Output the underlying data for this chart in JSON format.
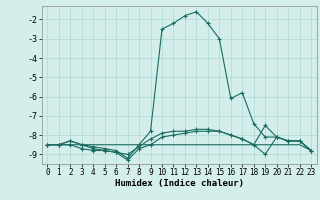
{
  "xlabel": "Humidex (Indice chaleur)",
  "bg_color": "#d4eeeb",
  "grid_color": "#b0d8d4",
  "line_color": "#1a6b60",
  "xlim": [
    -0.5,
    23.5
  ],
  "ylim": [
    -9.5,
    -1.3
  ],
  "xticks": [
    0,
    1,
    2,
    3,
    4,
    5,
    6,
    7,
    8,
    9,
    10,
    11,
    12,
    13,
    14,
    15,
    16,
    17,
    18,
    19,
    20,
    21,
    22,
    23
  ],
  "yticks": [
    -9,
    -8,
    -7,
    -6,
    -5,
    -4,
    -3,
    -2
  ],
  "series1_x": [
    0,
    1,
    2,
    3,
    4,
    5,
    6,
    7,
    8,
    9,
    10,
    11,
    12,
    13,
    14,
    15,
    16,
    17,
    18,
    19,
    20,
    21,
    22,
    23
  ],
  "series1_y": [
    -8.5,
    -8.5,
    -8.3,
    -8.5,
    -8.6,
    -8.7,
    -8.8,
    -9.2,
    -8.5,
    -7.8,
    -2.5,
    -2.2,
    -1.8,
    -1.6,
    -2.2,
    -3.0,
    -6.1,
    -5.8,
    -7.4,
    -8.1,
    -8.1,
    -8.3,
    -8.3,
    -8.8
  ],
  "series2_x": [
    0,
    1,
    2,
    3,
    4,
    5,
    6,
    7,
    8,
    9,
    10,
    11,
    12,
    13,
    14,
    15,
    16,
    17,
    18,
    19,
    20,
    21,
    22,
    23
  ],
  "series2_y": [
    -8.5,
    -8.5,
    -8.3,
    -8.5,
    -8.7,
    -8.8,
    -8.9,
    -9.0,
    -8.6,
    -8.2,
    -7.9,
    -7.8,
    -7.8,
    -7.7,
    -7.7,
    -7.8,
    -8.0,
    -8.2,
    -8.5,
    -7.5,
    -8.1,
    -8.3,
    -8.3,
    -8.8
  ],
  "series3_x": [
    0,
    1,
    2,
    3,
    4,
    5,
    6,
    7,
    8,
    9,
    10,
    11,
    12,
    13,
    14,
    15,
    16,
    17,
    18,
    19,
    20,
    21,
    22,
    23
  ],
  "series3_y": [
    -8.5,
    -8.5,
    -8.5,
    -8.7,
    -8.8,
    -8.8,
    -8.9,
    -9.3,
    -8.7,
    -8.5,
    -8.1,
    -8.0,
    -7.9,
    -7.8,
    -7.8,
    -7.8,
    -8.0,
    -8.2,
    -8.5,
    -9.0,
    -8.1,
    -8.3,
    -8.3,
    -8.8
  ],
  "series4_x": [
    0,
    1,
    2,
    3,
    4,
    5,
    6,
    7,
    8,
    9,
    10,
    11,
    12,
    13,
    14,
    15,
    16,
    17,
    18,
    19,
    20,
    21,
    22,
    23
  ],
  "series4_y": [
    -8.5,
    -8.5,
    -8.5,
    -8.5,
    -8.5,
    -8.5,
    -8.5,
    -8.5,
    -8.5,
    -8.5,
    -8.5,
    -8.5,
    -8.5,
    -8.5,
    -8.5,
    -8.5,
    -8.5,
    -8.5,
    -8.5,
    -8.5,
    -8.5,
    -8.5,
    -8.5,
    -8.8
  ]
}
